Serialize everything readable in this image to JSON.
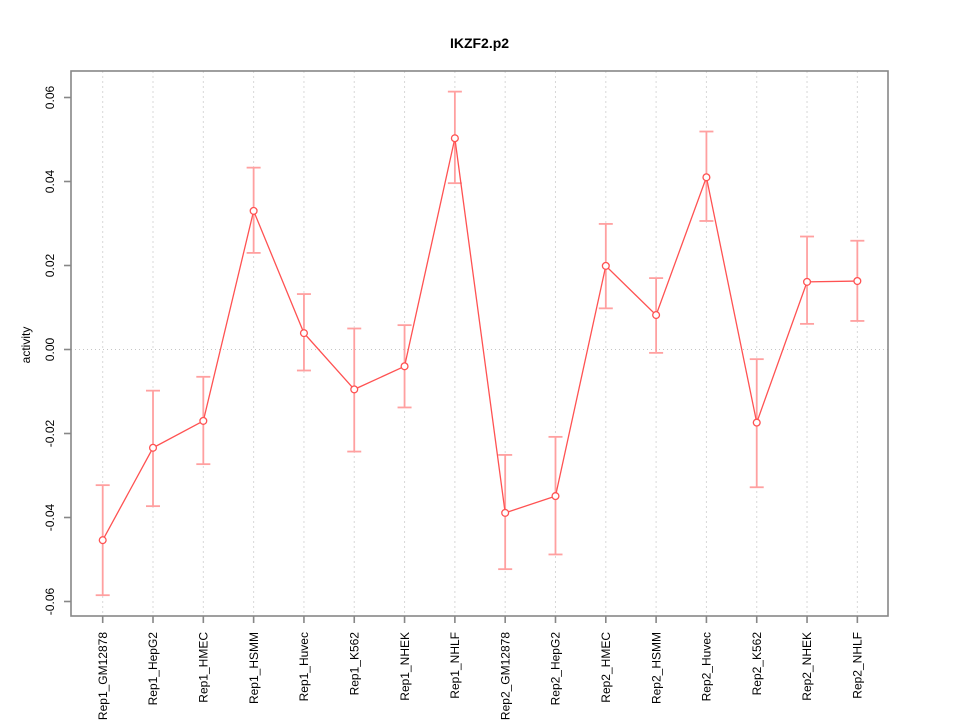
{
  "chart_data": {
    "type": "line",
    "title": "IKZF2.p2",
    "ylabel": "activity",
    "xlabel": "",
    "legend": "none",
    "grid": "vertical dashed gridline at each category; dotted horizontal line at y=0",
    "ylim": [
      -0.063,
      0.066
    ],
    "yticks": [
      -0.06,
      -0.04,
      -0.02,
      0.0,
      0.02,
      0.04,
      0.06
    ],
    "ytick_labels": [
      "-0.06",
      "-0.04",
      "-0.02",
      "0.00",
      "0.02",
      "0.04",
      "0.06"
    ],
    "categories": [
      "Rep1_GM12878",
      "Rep1_HepG2",
      "Rep1_HMEC",
      "Rep1_HSMM",
      "Rep1_Huvec",
      "Rep1_K562",
      "Rep1_NHEK",
      "Rep1_NHLF",
      "Rep2_GM12878",
      "Rep2_HepG2",
      "Rep2_HMEC",
      "Rep2_HSMM",
      "Rep2_Huvec",
      "Rep2_K562",
      "Rep2_NHEK",
      "Rep2_NHLF"
    ],
    "series": [
      {
        "name": "activity",
        "values": [
          -0.0454,
          -0.0234,
          -0.017,
          0.033,
          0.0039,
          -0.0095,
          -0.004,
          0.0503,
          -0.0389,
          -0.0349,
          0.0199,
          0.0082,
          0.041,
          -0.0174,
          0.0161,
          0.0163
        ],
        "ci_low": [
          -0.0585,
          -0.0373,
          -0.0273,
          0.023,
          -0.005,
          -0.0243,
          -0.0138,
          0.0396,
          -0.0523,
          -0.0488,
          0.0098,
          -0.0008,
          0.0306,
          -0.0328,
          0.0061,
          0.0068
        ],
        "ci_high": [
          -0.0323,
          -0.0098,
          -0.0065,
          0.0433,
          0.0132,
          0.005,
          0.0058,
          0.0614,
          -0.0251,
          -0.0208,
          0.0299,
          0.017,
          0.0519,
          -0.0023,
          0.0269,
          0.0259
        ]
      }
    ],
    "colors": {
      "series": "#ff5252",
      "error_bars": "#ffa0a0",
      "gridline": "#d8d8d8",
      "zero_line": "#c6c6c6",
      "box": "#878787",
      "text": "#000000"
    }
  }
}
